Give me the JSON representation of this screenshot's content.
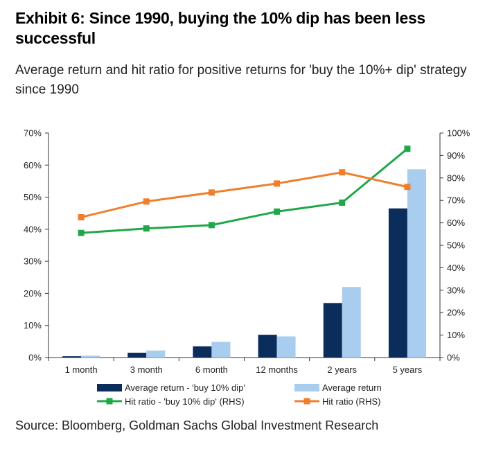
{
  "header": {
    "title": "Exhibit 6: Since 1990, buying the 10% dip has been less successful",
    "subtitle": "Average return and hit ratio for positive returns for 'buy the 10%+ dip' strategy since 1990"
  },
  "footer": {
    "source": "Source: Bloomberg, Goldman Sachs Global Investment Research"
  },
  "chart_data": {
    "type": "bar",
    "categories": [
      "1 month",
      "3 month",
      "6 month",
      "12 months",
      "2 years",
      "5 years"
    ],
    "series": [
      {
        "name": "Average return - 'buy 10% dip'",
        "type": "bar",
        "axis": "left",
        "color": "#0b2d5b",
        "values": [
          0.4,
          1.5,
          3.5,
          7.1,
          17.0,
          46.5
        ]
      },
      {
        "name": "Average return",
        "type": "bar",
        "axis": "left",
        "color": "#a9cdee",
        "values": [
          0.6,
          2.2,
          4.9,
          6.6,
          22.0,
          58.7
        ]
      },
      {
        "name": "Hit ratio - 'buy 10% dip' (RHS)",
        "type": "line",
        "axis": "right",
        "color": "#1fa84a",
        "values": [
          55.5,
          57.5,
          59.0,
          65.0,
          69.0,
          93.0
        ]
      },
      {
        "name": "Hit ratio (RHS)",
        "type": "line",
        "axis": "right",
        "color": "#f07f2b",
        "values": [
          62.5,
          69.5,
          73.5,
          77.5,
          82.5,
          76.0
        ]
      }
    ],
    "y_left": {
      "min": 0,
      "max": 70,
      "step": 10,
      "tick_labels": [
        "0%",
        "10%",
        "20%",
        "30%",
        "40%",
        "50%",
        "60%",
        "70%"
      ]
    },
    "y_right": {
      "min": 0,
      "max": 100,
      "step": 10,
      "tick_labels": [
        "0%",
        "10%",
        "20%",
        "30%",
        "40%",
        "50%",
        "60%",
        "70%",
        "80%",
        "90%",
        "100%"
      ]
    },
    "grid": false,
    "legend_position": "bottom"
  }
}
